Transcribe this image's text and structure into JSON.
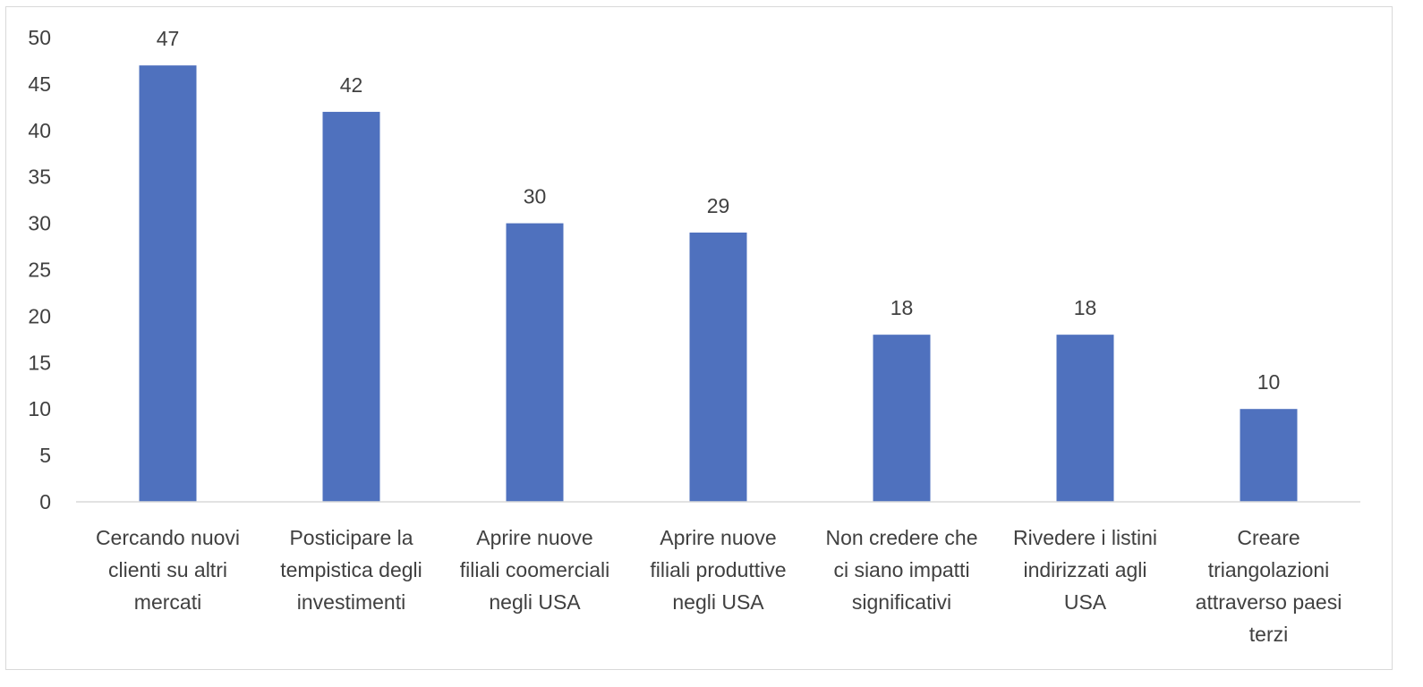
{
  "chart_data": {
    "type": "bar",
    "title": "",
    "xlabel": "",
    "ylabel": "",
    "ylim": [
      0,
      50
    ],
    "yticks": [
      0,
      5,
      10,
      15,
      20,
      25,
      30,
      35,
      40,
      45,
      50
    ],
    "grid": false,
    "bar_color": "#4f71be",
    "categories": [
      [
        "Cercando nuovi",
        "clienti su altri",
        "mercati"
      ],
      [
        "Posticipare la",
        "tempistica degli",
        "investimenti"
      ],
      [
        "Aprire nuove",
        "filiali coomerciali",
        "negli USA"
      ],
      [
        "Aprire nuove",
        "filiali produttive",
        "negli USA"
      ],
      [
        "Non credere che",
        "ci siano impatti",
        "significativi"
      ],
      [
        "Rivedere i listini",
        "indirizzati agli",
        "USA"
      ],
      [
        "Creare",
        "triangolazioni",
        "attraverso paesi",
        "terzi"
      ]
    ],
    "values": [
      47,
      42,
      30,
      29,
      18,
      18,
      10
    ]
  }
}
